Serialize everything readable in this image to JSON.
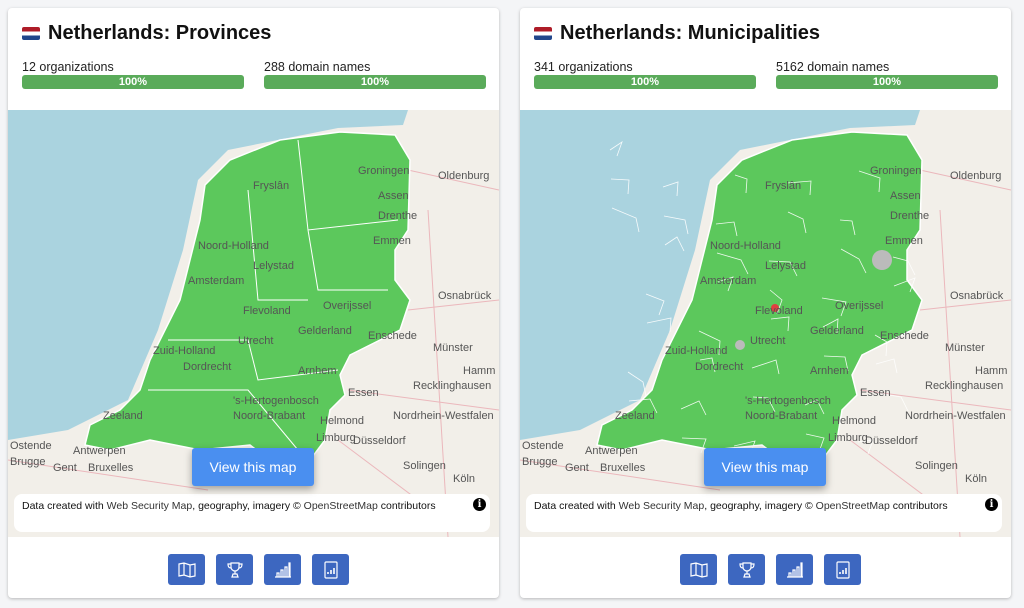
{
  "cards": [
    {
      "title": "Netherlands: Provinces",
      "flag": "netherlands-flag",
      "organizations": "12 organizations",
      "org_progress": "100%",
      "domains": "288 domain names",
      "domain_progress": "100%",
      "map_labels": [
        "Groningen",
        "Fryslân",
        "Assen",
        "Drenthe",
        "Noord-Holland",
        "Lelystad",
        "Emmen",
        "Amsterdam",
        "Overijssel",
        "Flevoland",
        "Enschede",
        "Zuid-Holland",
        "Utrecht",
        "Gelderland",
        "Dordrecht",
        "Arnhem",
        "Zeeland",
        "'s-Hertogenbosch",
        "Noord-Brabant",
        "Helmond",
        "Limburg",
        "Oldenburg",
        "Osnabrück",
        "Münster",
        "Hamm",
        "Recklinghausen",
        "Essen",
        "Nordrhein-Westfalen",
        "Düsseldorf",
        "Antwerpen",
        "Bruxelles",
        "Gent",
        "Brugge",
        "Ostende",
        "Solingen",
        "Köln"
      ],
      "highlight": "#5cc85c"
    },
    {
      "title": "Netherlands: Municipalities",
      "flag": "netherlands-flag",
      "organizations": "341 organizations",
      "org_progress": "100%",
      "domains": "5162 domain names",
      "domain_progress": "100%",
      "map_labels": [
        "Groningen",
        "Fryslân",
        "Assen",
        "Drenthe",
        "Noord-Holland",
        "Lelystad",
        "Emmen",
        "Amsterdam",
        "Overijssel",
        "Flevoland",
        "Enschede",
        "Zuid-Holland",
        "Utrecht",
        "Gelderland",
        "Dordrecht",
        "Arnhem",
        "Zeeland",
        "'s-Hertogenbosch",
        "Noord-Brabant",
        "Helmond",
        "Limburg",
        "Oldenburg",
        "Osnabrück",
        "Münster",
        "Hamm",
        "Recklinghausen",
        "Essen",
        "Nordrhein-Westfalen",
        "Düsseldorf",
        "Antwerpen",
        "Bruxelles",
        "Gent",
        "Brugge",
        "Ostende",
        "Solingen",
        "Köln"
      ],
      "highlight": "#5cc85c"
    }
  ],
  "view_map_label": "View this map",
  "attribution": {
    "prefix": "Data created with ",
    "link": "Web Security Map",
    "middle": ", geography, imagery © ",
    "osm": "OpenStreetMap",
    "suffix": " contributors"
  },
  "buttons": [
    {
      "icon": "map-icon"
    },
    {
      "icon": "trophy-icon"
    },
    {
      "icon": "bar-chart-icon"
    },
    {
      "icon": "report-icon"
    }
  ],
  "colors": {
    "progress": "#5aab5a",
    "button": "#3d67c0",
    "view_button": "#4a8ff0",
    "water": "#aad3df",
    "land": "#f2efe9"
  }
}
